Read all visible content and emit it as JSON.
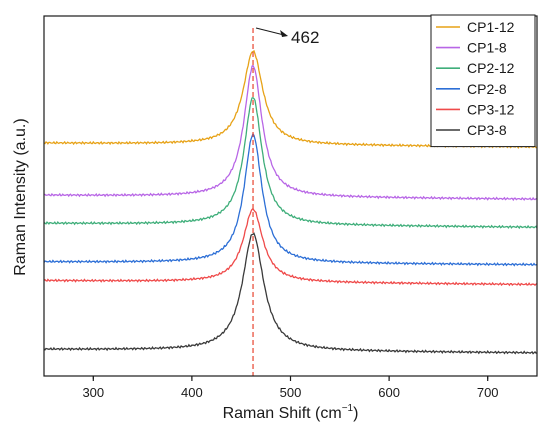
{
  "chart_data": {
    "type": "line",
    "title": "",
    "xlabel": "Raman Shift (cm",
    "xlabel_sup": "−1",
    "xlabel_tail": ")",
    "ylabel": "Raman Intensity (a.u.)",
    "xlim": [
      250,
      750
    ],
    "ylim": [
      0,
      100
    ],
    "x_ticks": [
      300,
      400,
      500,
      600,
      700
    ],
    "y_ticks_shown": false,
    "grid": false,
    "legend_position": "top-right",
    "peak_line": {
      "x": 462,
      "label": "462",
      "color": "#e8432e"
    },
    "series": [
      {
        "name": "CP1-12",
        "color": "#e7a217",
        "baseline": 64.7,
        "tail": 63.6,
        "height": 26.0,
        "gamma": 12
      },
      {
        "name": "CP1-8",
        "color": "#b866e6",
        "baseline": 50.2,
        "tail": 49.1,
        "height": 36.4,
        "gamma": 11
      },
      {
        "name": "CP2-12",
        "color": "#3fae7a",
        "baseline": 42.4,
        "tail": 41.3,
        "height": 35.5,
        "gamma": 11
      },
      {
        "name": "CP2-8",
        "color": "#2d6fd6",
        "baseline": 31.7,
        "tail": 30.9,
        "height": 35.7,
        "gamma": 11
      },
      {
        "name": "CP3-12",
        "color": "#ef4a4a",
        "baseline": 26.5,
        "tail": 25.4,
        "height": 20.3,
        "gamma": 12
      },
      {
        "name": "CP3-8",
        "color": "#3a3a3a",
        "baseline": 7.4,
        "tail": 6.4,
        "height": 32.6,
        "gamma": 13
      }
    ]
  }
}
